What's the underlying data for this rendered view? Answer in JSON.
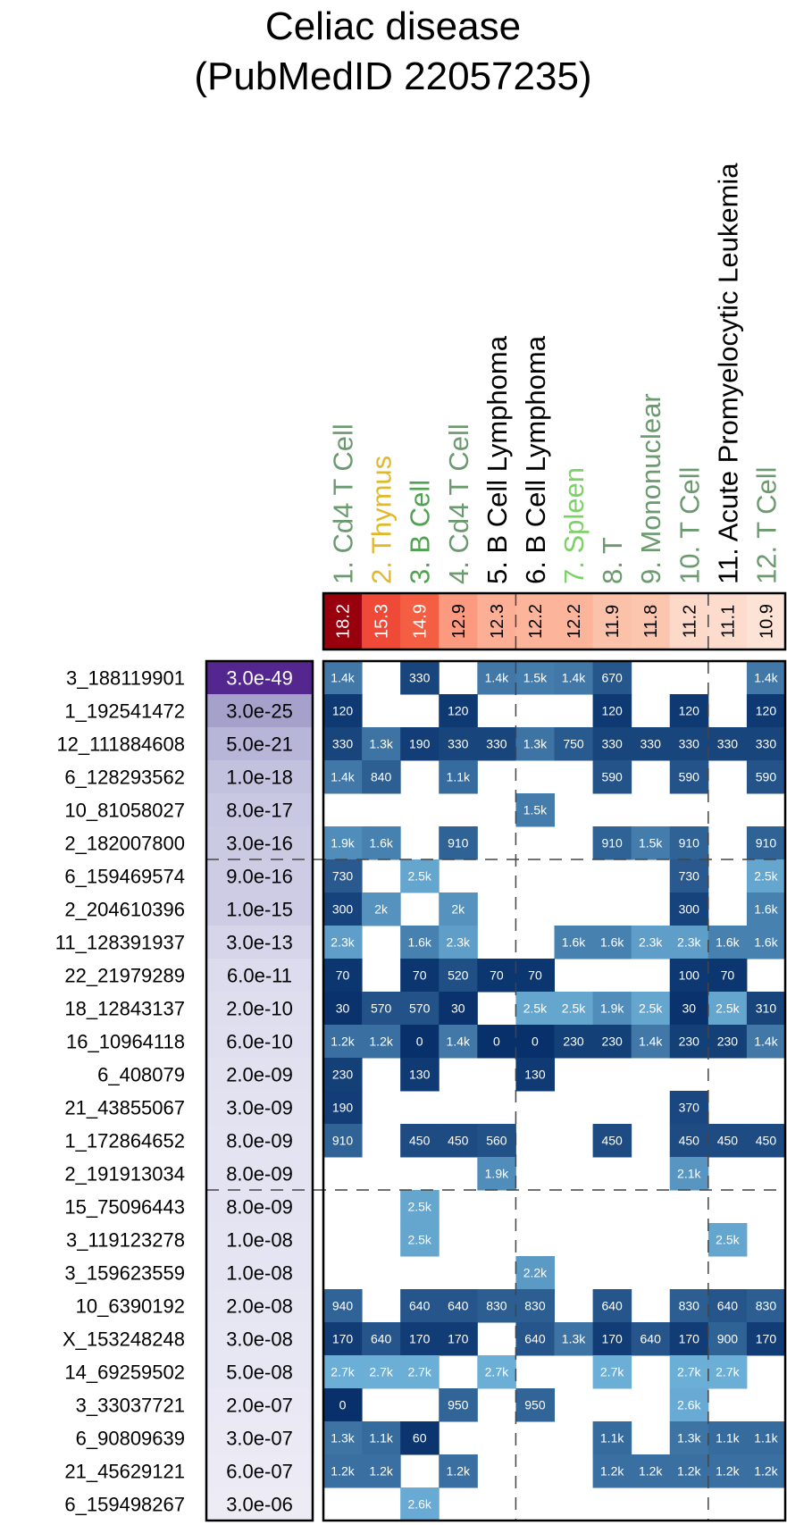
{
  "chart_data": {
    "type": "heatmap",
    "title": [
      "Celiac disease",
      "(PubMedID 22057235)"
    ],
    "columns": [
      {
        "label": "1. Cd4 T Cell",
        "color": "#6b9a6f",
        "enrichment": "18.2",
        "enrichment_color": "#99000d"
      },
      {
        "label": "2. Thymus",
        "color": "#e0b82a",
        "enrichment": "15.3",
        "enrichment_color": "#ef4a37"
      },
      {
        "label": "3. B Cell",
        "color": "#4fa24f",
        "enrichment": "14.9",
        "enrichment_color": "#f45f44"
      },
      {
        "label": "4. Cd4 T Cell",
        "color": "#6b9a6f",
        "enrichment": "12.9",
        "enrichment_color": "#fb9a7e"
      },
      {
        "label": "5. B Cell Lymphoma",
        "color": "#000000",
        "enrichment": "12.3",
        "enrichment_color": "#fcaf95"
      },
      {
        "label": "6. B Cell Lymphoma",
        "color": "#000000",
        "enrichment": "12.2",
        "enrichment_color": "#fcb59b"
      },
      {
        "label": "7. Spleen",
        "color": "#7cd165",
        "enrichment": "12.2",
        "enrichment_color": "#fcb59b"
      },
      {
        "label": "8. T",
        "color": "#6b9a6f",
        "enrichment": "11.9",
        "enrichment_color": "#fcc1a9"
      },
      {
        "label": "9. Mononuclear",
        "color": "#6b9a6f",
        "enrichment": "11.8",
        "enrichment_color": "#fcc5ae"
      },
      {
        "label": "10. T Cell",
        "color": "#6b9a6f",
        "enrichment": "11.2",
        "enrichment_color": "#fdd9c9"
      },
      {
        "label": "11. Acute Promyelocytic Leukemia",
        "color": "#000000",
        "enrichment": "11.1",
        "enrichment_color": "#fddccd"
      },
      {
        "label": "12. T Cell",
        "color": "#6b9a6f",
        "enrichment": "10.9",
        "enrichment_color": "#fde2d6"
      }
    ],
    "rows": [
      {
        "snp": "3_188119901",
        "pvalue": "3.0e-49",
        "pvalue_color": "#54278f",
        "cells": [
          "1.4k",
          "",
          "330",
          "",
          "1.4k",
          "1.5k",
          "1.4k",
          "670",
          "",
          "",
          "",
          "1.4k"
        ]
      },
      {
        "snp": "1_192541472",
        "pvalue": "3.0e-25",
        "pvalue_color": "#a5a1cb",
        "cells": [
          "120",
          "",
          "",
          "120",
          "",
          "",
          "",
          "120",
          "",
          "120",
          "",
          "120"
        ]
      },
      {
        "snp": "12_111884608",
        "pvalue": "5.0e-21",
        "pvalue_color": "#b8b6d8",
        "cells": [
          "330",
          "1.3k",
          "190",
          "330",
          "330",
          "1.3k",
          "750",
          "330",
          "330",
          "330",
          "330",
          "330"
        ]
      },
      {
        "snp": "6_128293562",
        "pvalue": "1.0e-18",
        "pvalue_color": "#c2c1de",
        "cells": [
          "1.4k",
          "840",
          "",
          "1.1k",
          "",
          "",
          "",
          "590",
          "",
          "590",
          "",
          "590"
        ]
      },
      {
        "snp": "10_81058027",
        "pvalue": "8.0e-17",
        "pvalue_color": "#c9c8e2",
        "cells": [
          "",
          "",
          "",
          "",
          "",
          "1.5k",
          "",
          "",
          "",
          "",
          "",
          ""
        ]
      },
      {
        "snp": "2_182007800",
        "pvalue": "3.0e-16",
        "pvalue_color": "#cbcae3",
        "cells": [
          "1.9k",
          "1.6k",
          "",
          "910",
          "",
          "",
          "",
          "910",
          "1.5k",
          "910",
          "",
          "910"
        ]
      },
      {
        "snp": "6_159469574",
        "pvalue": "9.0e-16",
        "pvalue_color": "#cdcce4",
        "cells": [
          "730",
          "",
          "2.5k",
          "",
          "",
          "",
          "",
          "",
          "",
          "730",
          "",
          "2.5k"
        ]
      },
      {
        "snp": "2_204610396",
        "pvalue": "1.0e-15",
        "pvalue_color": "#cdcce4",
        "cells": [
          "300",
          "2k",
          "",
          "2k",
          "",
          "",
          "",
          "",
          "",
          "300",
          "",
          "1.6k"
        ]
      },
      {
        "snp": "11_128391937",
        "pvalue": "3.0e-13",
        "pvalue_color": "#d6d5ea",
        "cells": [
          "2.3k",
          "",
          "1.6k",
          "2.3k",
          "",
          "",
          "1.6k",
          "1.6k",
          "2.3k",
          "2.3k",
          "1.6k",
          "1.6k"
        ]
      },
      {
        "snp": "22_21979289",
        "pvalue": "6.0e-11",
        "pvalue_color": "#dddcee",
        "cells": [
          "70",
          "",
          "70",
          "520",
          "70",
          "70",
          "",
          "",
          "",
          "100",
          "70",
          ""
        ]
      },
      {
        "snp": "18_12843137",
        "pvalue": "2.0e-10",
        "pvalue_color": "#dfdeef",
        "cells": [
          "30",
          "570",
          "570",
          "30",
          "",
          "2.5k",
          "2.5k",
          "1.9k",
          "2.5k",
          "30",
          "2.5k",
          "310"
        ]
      },
      {
        "snp": "16_10964118",
        "pvalue": "6.0e-10",
        "pvalue_color": "#e0dff0",
        "cells": [
          "1.2k",
          "1.2k",
          "0",
          "1.4k",
          "0",
          "0",
          "230",
          "230",
          "1.4k",
          "230",
          "230",
          "1.4k"
        ]
      },
      {
        "snp": "6_408079",
        "pvalue": "2.0e-09",
        "pvalue_color": "#e2e1f0",
        "cells": [
          "230",
          "",
          "130",
          "",
          "",
          "130",
          "",
          "",
          "",
          "",
          "",
          ""
        ]
      },
      {
        "snp": "21_43855067",
        "pvalue": "3.0e-09",
        "pvalue_color": "#e3e2f1",
        "cells": [
          "190",
          "",
          "",
          "",
          "",
          "",
          "",
          "",
          "",
          "370",
          "",
          ""
        ]
      },
      {
        "snp": "1_172864652",
        "pvalue": "8.0e-09",
        "pvalue_color": "#e4e3f2",
        "cells": [
          "910",
          "",
          "450",
          "450",
          "560",
          "",
          "",
          "450",
          "",
          "450",
          "450",
          "450"
        ]
      },
      {
        "snp": "2_191913034",
        "pvalue": "8.0e-09",
        "pvalue_color": "#e4e3f2",
        "cells": [
          "",
          "",
          "",
          "",
          "1.9k",
          "",
          "",
          "",
          "",
          "2.1k",
          "",
          ""
        ]
      },
      {
        "snp": "15_75096443",
        "pvalue": "8.0e-09",
        "pvalue_color": "#e4e3f2",
        "cells": [
          "",
          "",
          "2.5k",
          "",
          "",
          "",
          "",
          "",
          "",
          "",
          "",
          ""
        ]
      },
      {
        "snp": "3_119123278",
        "pvalue": "1.0e-08",
        "pvalue_color": "#e5e4f2",
        "cells": [
          "",
          "",
          "2.5k",
          "",
          "",
          "",
          "",
          "",
          "",
          "",
          "2.5k",
          ""
        ]
      },
      {
        "snp": "3_159623559",
        "pvalue": "1.0e-08",
        "pvalue_color": "#e5e4f2",
        "cells": [
          "",
          "",
          "",
          "",
          "",
          "2.2k",
          "",
          "",
          "",
          "",
          "",
          ""
        ]
      },
      {
        "snp": "10_6390192",
        "pvalue": "2.0e-08",
        "pvalue_color": "#e6e5f2",
        "cells": [
          "940",
          "",
          "640",
          "640",
          "830",
          "830",
          "",
          "640",
          "",
          "830",
          "640",
          "830"
        ]
      },
      {
        "snp": "X_153248248",
        "pvalue": "3.0e-08",
        "pvalue_color": "#e7e6f3",
        "cells": [
          "170",
          "640",
          "170",
          "170",
          "",
          "640",
          "1.3k",
          "170",
          "640",
          "170",
          "900",
          "170"
        ]
      },
      {
        "snp": "14_69259502",
        "pvalue": "5.0e-08",
        "pvalue_color": "#e7e6f3",
        "cells": [
          "2.7k",
          "2.7k",
          "2.7k",
          "",
          "2.7k",
          "",
          "",
          "2.7k",
          "",
          "2.7k",
          "2.7k",
          ""
        ]
      },
      {
        "snp": "3_33037721",
        "pvalue": "2.0e-07",
        "pvalue_color": "#e9e8f4",
        "cells": [
          "0",
          "",
          "",
          "950",
          "",
          "950",
          "",
          "",
          "",
          "2.6k",
          "",
          ""
        ]
      },
      {
        "snp": "6_90809639",
        "pvalue": "3.0e-07",
        "pvalue_color": "#eae9f4",
        "cells": [
          "1.3k",
          "1.1k",
          "60",
          "",
          "",
          "",
          "",
          "1.1k",
          "",
          "1.3k",
          "1.1k",
          "1.1k"
        ]
      },
      {
        "snp": "21_45629121",
        "pvalue": "6.0e-07",
        "pvalue_color": "#ebeaf5",
        "cells": [
          "1.2k",
          "1.2k",
          "",
          "1.2k",
          "",
          "",
          "",
          "1.2k",
          "1.2k",
          "1.2k",
          "1.2k",
          "1.2k"
        ]
      },
      {
        "snp": "6_159498267",
        "pvalue": "3.0e-06",
        "pvalue_color": "#edecf5",
        "cells": [
          "",
          "",
          "2.6k",
          "",
          "",
          "",
          "",
          "",
          "",
          "",
          "",
          ""
        ]
      }
    ],
    "row_dividers_after": [
      6,
      16
    ],
    "column_dividers_after": [
      5,
      10
    ],
    "cell_color_scale": {
      "low": "#08306b",
      "high": "#6baed6",
      "max_value": 2700
    }
  }
}
